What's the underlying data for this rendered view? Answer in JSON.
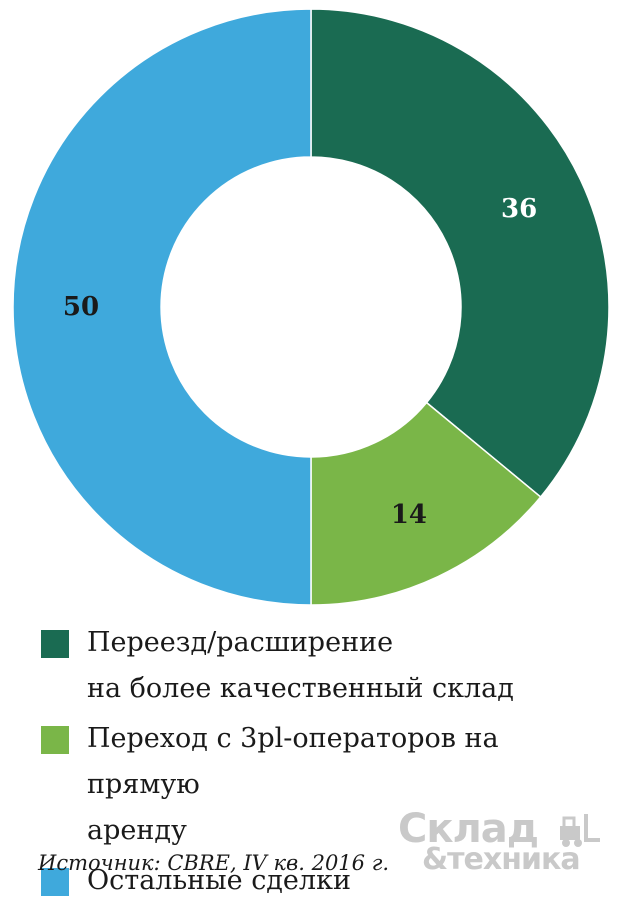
{
  "chart_data": {
    "type": "pie",
    "variant": "donut",
    "series": [
      {
        "name": "Переезд/расширение на более качественный склад",
        "value": 36,
        "label": "36",
        "color": "#1a6b52",
        "label_color": "#ffffff"
      },
      {
        "name": "Переход с 3pl-операторов на прямую аренду",
        "value": 14,
        "label": "14",
        "color": "#7ab648",
        "label_color": "#1a1a1a"
      },
      {
        "name": "Остальные сделки",
        "value": 50,
        "label": "50",
        "color": "#3fa9dc",
        "label_color": "#1a1a1a"
      }
    ],
    "start_angle_deg": 0,
    "direction": "clockwise"
  },
  "legend": {
    "items": [
      {
        "lines": [
          "Переезд/расширение",
          "на более качественный склад"
        ],
        "color": "#1a6b52"
      },
      {
        "lines": [
          "Переход с 3pl-операторов на прямую",
          "аренду"
        ],
        "color": "#7ab648"
      },
      {
        "lines": [
          "Остальные сделки"
        ],
        "color": "#3fa9dc"
      }
    ]
  },
  "source": "Источник: CBRE, IV кв. 2016 г.",
  "logo": {
    "line1": "Склад",
    "line2": "&техника",
    "icon": "forklift-icon"
  }
}
